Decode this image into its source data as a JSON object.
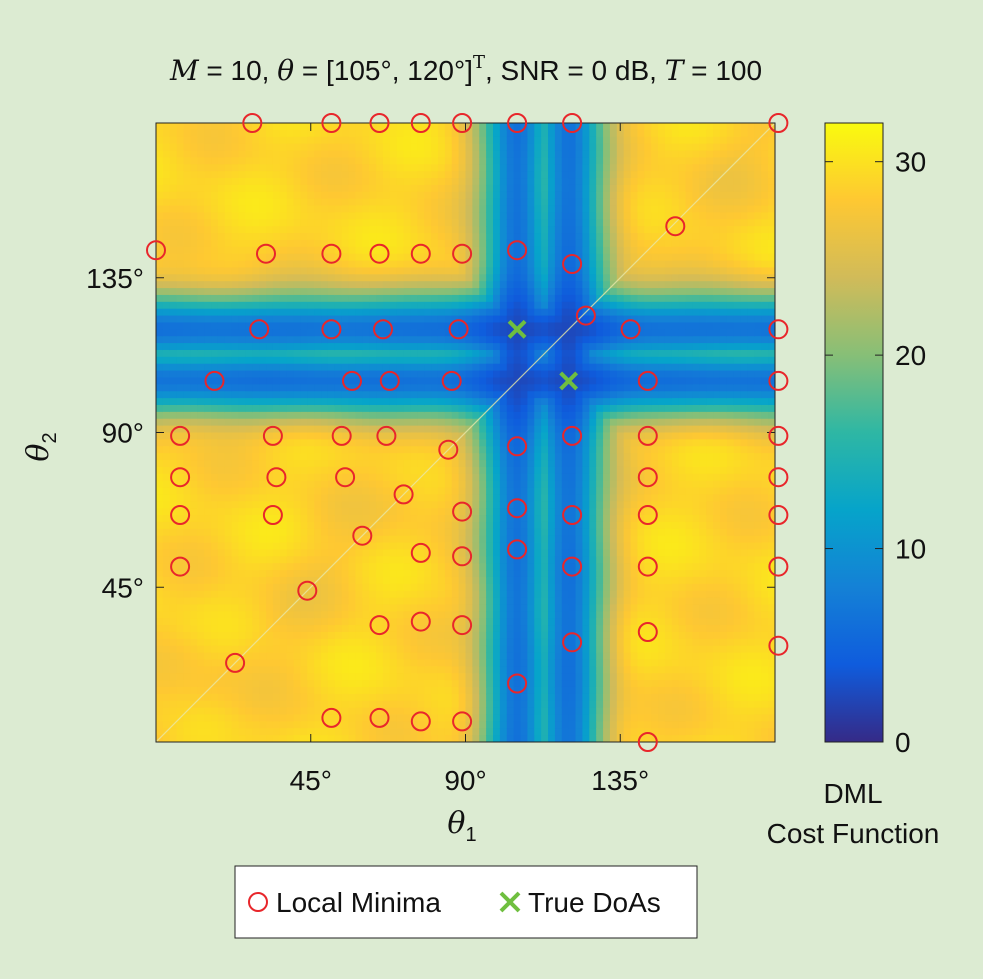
{
  "chart_data": {
    "type": "heatmap",
    "title": {
      "M_sym": "M",
      "M_val": " = 10, ",
      "theta_sym": "θ",
      "theta_val": " = [105°, 120°]",
      "sup": "T",
      "snr": ", SNR = 0 dB, ",
      "T_sym": "T",
      "T_val": " = 100"
    },
    "xlabel": {
      "sym": "θ",
      "sub": "1"
    },
    "ylabel": {
      "sym": "θ",
      "sub": "2"
    },
    "xlim": [
      0,
      180
    ],
    "ylim": [
      0,
      180
    ],
    "x_ticks": [
      {
        "value": 45,
        "label": "45°"
      },
      {
        "value": 90,
        "label": "90°"
      },
      {
        "value": 135,
        "label": "135°"
      }
    ],
    "y_ticks": [
      {
        "value": 45,
        "label": "45°"
      },
      {
        "value": 90,
        "label": "90°"
      },
      {
        "value": 135,
        "label": "135°"
      }
    ],
    "colorbar": {
      "range": [
        0,
        32
      ],
      "ticks": [
        {
          "value": 0,
          "label": "0"
        },
        {
          "value": 10,
          "label": "10"
        },
        {
          "value": 20,
          "label": "20"
        },
        {
          "value": 30,
          "label": "30"
        }
      ],
      "title_lines": [
        "DML",
        "Cost Function"
      ],
      "colormap": [
        "#352a87",
        "#0f5cdd",
        "#1481d6",
        "#06a4ca",
        "#2eb7a4",
        "#87bf77",
        "#d1bb59",
        "#fec832",
        "#f9fb0e"
      ]
    },
    "true_doas": [
      [
        105,
        120
      ],
      [
        120,
        105
      ]
    ],
    "true_doa_color": "#6fbf3f",
    "local_minima_color": "#e8262b",
    "local_minima": [
      [
        28,
        180
      ],
      [
        51,
        180
      ],
      [
        65,
        180
      ],
      [
        77,
        180
      ],
      [
        89,
        180
      ],
      [
        105,
        180
      ],
      [
        121,
        180
      ],
      [
        181,
        180
      ],
      [
        0,
        143
      ],
      [
        32,
        142
      ],
      [
        51,
        142
      ],
      [
        65,
        142
      ],
      [
        77,
        142
      ],
      [
        89,
        142
      ],
      [
        105,
        143
      ],
      [
        121,
        139
      ],
      [
        151,
        150
      ],
      [
        30,
        120
      ],
      [
        51,
        120
      ],
      [
        66,
        120
      ],
      [
        88,
        120
      ],
      [
        125,
        124
      ],
      [
        138,
        120
      ],
      [
        181,
        120
      ],
      [
        17,
        105
      ],
      [
        57,
        105
      ],
      [
        68,
        105
      ],
      [
        86,
        105
      ],
      [
        143,
        105
      ],
      [
        181,
        105
      ],
      [
        7,
        89
      ],
      [
        34,
        89
      ],
      [
        54,
        89
      ],
      [
        67,
        89
      ],
      [
        85,
        85
      ],
      [
        105,
        86
      ],
      [
        121,
        89
      ],
      [
        143,
        89
      ],
      [
        181,
        89
      ],
      [
        7,
        77
      ],
      [
        35,
        77
      ],
      [
        55,
        77
      ],
      [
        72,
        72
      ],
      [
        143,
        77
      ],
      [
        181,
        77
      ],
      [
        7,
        66
      ],
      [
        34,
        66
      ],
      [
        89,
        67
      ],
      [
        105,
        68
      ],
      [
        121,
        66
      ],
      [
        143,
        66
      ],
      [
        181,
        66
      ],
      [
        60,
        60
      ],
      [
        77,
        55
      ],
      [
        89,
        54
      ],
      [
        105,
        56
      ],
      [
        7,
        51
      ],
      [
        121,
        51
      ],
      [
        143,
        51
      ],
      [
        181,
        51
      ],
      [
        44,
        44
      ],
      [
        65,
        34
      ],
      [
        77,
        35
      ],
      [
        89,
        34
      ],
      [
        121,
        29
      ],
      [
        143,
        32
      ],
      [
        181,
        28
      ],
      [
        23,
        23
      ],
      [
        105,
        17
      ],
      [
        51,
        7
      ],
      [
        65,
        7
      ],
      [
        77,
        6
      ],
      [
        89,
        6
      ],
      [
        143,
        0
      ]
    ],
    "legend": {
      "placement": "bottom",
      "entries": [
        {
          "label": "Local Minima",
          "marker": "circle"
        },
        {
          "label": "True DoAs",
          "marker": "x"
        }
      ]
    }
  }
}
